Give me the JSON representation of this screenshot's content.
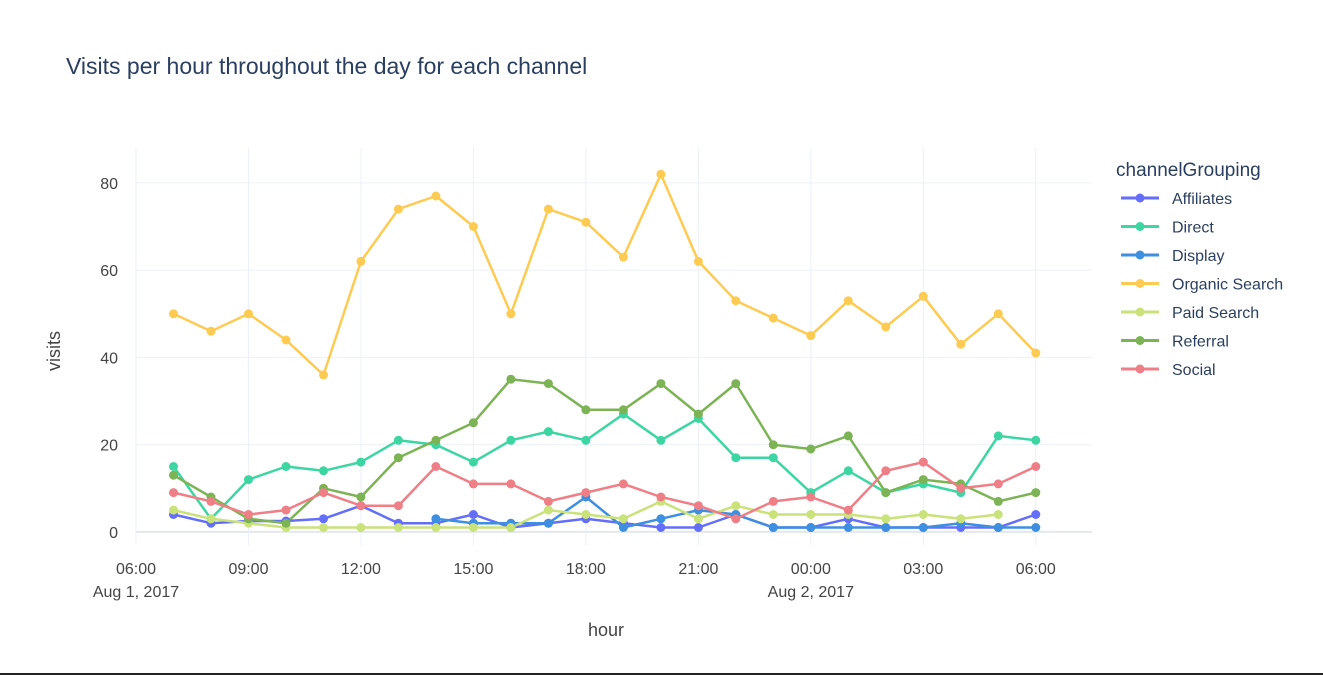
{
  "chart_data": {
    "type": "line",
    "title": "Visits per hour throughout the day for each channel",
    "xlabel": "hour",
    "ylabel": "visits",
    "legend_title": "channelGrouping",
    "legend_position": "right",
    "grid": true,
    "x_start": "Aug 1, 2017 06:00",
    "x_end": "Aug 2, 2017 07:30",
    "ylim": [
      -3,
      88
    ],
    "x_ticks": [
      {
        "hour": 6,
        "label": "06:00",
        "sub": "Aug 1, 2017"
      },
      {
        "hour": 9,
        "label": "09:00",
        "sub": ""
      },
      {
        "hour": 12,
        "label": "12:00",
        "sub": ""
      },
      {
        "hour": 15,
        "label": "15:00",
        "sub": ""
      },
      {
        "hour": 18,
        "label": "18:00",
        "sub": ""
      },
      {
        "hour": 21,
        "label": "21:00",
        "sub": ""
      },
      {
        "hour": 24,
        "label": "00:00",
        "sub": "Aug 2, 2017"
      },
      {
        "hour": 27,
        "label": "03:00",
        "sub": ""
      },
      {
        "hour": 30,
        "label": "06:00",
        "sub": ""
      }
    ],
    "y_ticks": [
      0,
      20,
      40,
      60,
      80
    ],
    "series": [
      {
        "name": "Affiliates",
        "color": "#636efa",
        "points": [
          [
            7,
            4
          ],
          [
            8,
            2
          ],
          [
            9,
            2.5
          ],
          [
            10,
            2.5
          ],
          [
            11,
            3
          ],
          [
            12,
            6
          ],
          [
            13,
            2
          ],
          [
            14,
            2
          ],
          [
            15,
            4
          ],
          [
            16,
            1
          ],
          [
            17,
            2
          ],
          [
            18,
            3
          ],
          [
            19,
            2
          ],
          [
            20,
            1
          ],
          [
            21,
            1
          ],
          [
            22,
            4
          ],
          [
            23,
            1
          ],
          [
            24,
            1
          ],
          [
            25,
            3
          ],
          [
            26,
            1
          ],
          [
            27,
            1
          ],
          [
            28,
            1
          ],
          [
            29,
            1
          ],
          [
            30,
            4
          ]
        ]
      },
      {
        "name": "Direct",
        "color": "#3dd6a3",
        "points": [
          [
            7,
            15
          ],
          [
            8,
            3
          ],
          [
            9,
            12
          ],
          [
            10,
            15
          ],
          [
            11,
            14
          ],
          [
            12,
            16
          ],
          [
            13,
            21
          ],
          [
            14,
            20
          ],
          [
            15,
            16
          ],
          [
            16,
            21
          ],
          [
            17,
            23
          ],
          [
            18,
            21
          ],
          [
            19,
            27
          ],
          [
            20,
            21
          ],
          [
            21,
            26
          ],
          [
            22,
            17
          ],
          [
            23,
            17
          ],
          [
            24,
            9
          ],
          [
            25,
            14
          ],
          [
            26,
            9
          ],
          [
            27,
            11
          ],
          [
            28,
            9
          ],
          [
            29,
            22
          ],
          [
            30,
            21
          ]
        ]
      },
      {
        "name": "Display",
        "color": "#3e8fe0",
        "points": [
          [
            14,
            3
          ],
          [
            15,
            2
          ],
          [
            16,
            2
          ],
          [
            17,
            2
          ],
          [
            18,
            8
          ],
          [
            19,
            1
          ],
          [
            20,
            3
          ],
          [
            21,
            5
          ],
          [
            22,
            4
          ],
          [
            23,
            1
          ],
          [
            24,
            1
          ],
          [
            25,
            1
          ],
          [
            26,
            1
          ],
          [
            27,
            1
          ],
          [
            28,
            2
          ],
          [
            29,
            1
          ],
          [
            30,
            1
          ]
        ]
      },
      {
        "name": "Organic Search",
        "color": "#fecb52",
        "points": [
          [
            7,
            50
          ],
          [
            8,
            46
          ],
          [
            9,
            50
          ],
          [
            10,
            44
          ],
          [
            11,
            36
          ],
          [
            12,
            62
          ],
          [
            13,
            74
          ],
          [
            14,
            77
          ],
          [
            15,
            70
          ],
          [
            16,
            50
          ],
          [
            17,
            74
          ],
          [
            18,
            71
          ],
          [
            19,
            63
          ],
          [
            20,
            82
          ],
          [
            21,
            62
          ],
          [
            22,
            53
          ],
          [
            23,
            49
          ],
          [
            24,
            45
          ],
          [
            25,
            53
          ],
          [
            26,
            47
          ],
          [
            27,
            54
          ],
          [
            28,
            43
          ],
          [
            29,
            50
          ],
          [
            30,
            41
          ]
        ]
      },
      {
        "name": "Paid Search",
        "color": "#c9e27a",
        "points": [
          [
            7,
            5
          ],
          [
            8,
            3
          ],
          [
            9,
            2
          ],
          [
            10,
            1
          ],
          [
            11,
            1
          ],
          [
            12,
            1
          ],
          [
            13,
            1
          ],
          [
            14,
            1
          ],
          [
            15,
            1
          ],
          [
            16,
            1
          ],
          [
            17,
            5
          ],
          [
            18,
            4
          ],
          [
            19,
            3
          ],
          [
            20,
            7
          ],
          [
            21,
            3
          ],
          [
            22,
            6
          ],
          [
            23,
            4
          ],
          [
            24,
            4
          ],
          [
            25,
            4
          ],
          [
            26,
            3
          ],
          [
            27,
            4
          ],
          [
            28,
            3
          ],
          [
            29,
            4
          ]
        ]
      },
      {
        "name": "Referral",
        "color": "#7cb455",
        "points": [
          [
            7,
            13
          ],
          [
            8,
            8
          ],
          [
            9,
            3
          ],
          [
            10,
            2
          ],
          [
            11,
            10
          ],
          [
            12,
            8
          ],
          [
            13,
            17
          ],
          [
            14,
            21
          ],
          [
            15,
            25
          ],
          [
            16,
            35
          ],
          [
            17,
            34
          ],
          [
            18,
            28
          ],
          [
            19,
            28
          ],
          [
            20,
            34
          ],
          [
            21,
            27
          ],
          [
            22,
            34
          ],
          [
            23,
            20
          ],
          [
            24,
            19
          ],
          [
            25,
            22
          ],
          [
            26,
            9
          ],
          [
            27,
            12
          ],
          [
            28,
            11
          ],
          [
            29,
            7
          ],
          [
            30,
            9
          ]
        ]
      },
      {
        "name": "Social",
        "color": "#ef7f86",
        "points": [
          [
            7,
            9
          ],
          [
            8,
            7
          ],
          [
            9,
            4
          ],
          [
            10,
            5
          ],
          [
            11,
            9
          ],
          [
            12,
            6
          ],
          [
            13,
            6
          ],
          [
            14,
            15
          ],
          [
            15,
            11
          ],
          [
            16,
            11
          ],
          [
            17,
            7
          ],
          [
            18,
            9
          ],
          [
            19,
            11
          ],
          [
            20,
            8
          ],
          [
            21,
            6
          ],
          [
            22,
            3
          ],
          [
            23,
            7
          ],
          [
            24,
            8
          ],
          [
            25,
            5
          ],
          [
            26,
            14
          ],
          [
            27,
            16
          ],
          [
            28,
            10
          ],
          [
            29,
            11
          ],
          [
            30,
            15
          ]
        ]
      }
    ]
  }
}
